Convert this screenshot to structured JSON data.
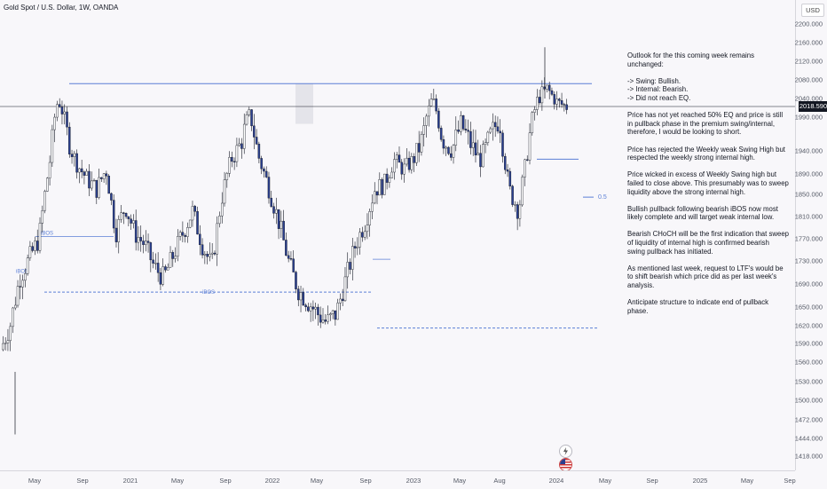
{
  "title": "Gold Spot / U.S. Dollar, 1W, OANDA",
  "currency_button": "USD",
  "current_price": "2018.590",
  "y_ticks": [
    "2200.000",
    "2160.000",
    "2120.000",
    "2080.000",
    "2040.000",
    "1990.000",
    "1940.000",
    "1890.000",
    "1850.000",
    "1810.000",
    "1770.000",
    "1730.000",
    "1690.000",
    "1650.000",
    "1620.000",
    "1590.000",
    "1560.000",
    "1530.000",
    "1500.000",
    "1472.000",
    "1444.000",
    "1418.000"
  ],
  "x_ticks": [
    "May",
    "Sep",
    "2021",
    "May",
    "Sep",
    "2022",
    "May",
    "Sep",
    "2023",
    "May",
    "Aug",
    "2024",
    "May",
    "Sep",
    "2025",
    "May",
    "Sep"
  ],
  "annotations": {
    "ibos_left": "iBOS",
    "ibos_lower": "iBOS",
    "ibos_bottom": "iBOS",
    "fib_half": "0.5"
  },
  "notes": {
    "intro": [
      "Outlook for the this coming week remains unchanged:"
    ],
    "bullets": [
      "-> Swing: Bullish.",
      "-> Internal: Bearish.",
      "-> Did not reach EQ."
    ],
    "p1": "Price has not yet reached 50% EQ and price is still in pullback phase in the premium swing/internal, therefore, I would be looking to short.",
    "p2": "Price has rejected the Weekly weak Swing High but respected the weekly strong internal high.",
    "p3": "Price wicked in excess of Weekly Swing high but failed to close above. This presumably was to sweep liquidity above the strong internal high.",
    "p4": "Bullish pullback following bearish iBOS now most likely complete and will target weak internal low.",
    "p5": "Bearish CHoCH will be the first indication that sweep of liquidity of internal high is confirmed bearish swing pullback has initiated.",
    "p6": "As mentioned last week, request to LTF's would be to shift bearish which price did as per last week's analysis.",
    "p7": "Anticipate structure to indicate end of pullback phase."
  },
  "icons": [
    "lightning-icon",
    "us-flag-icon"
  ],
  "colors": {
    "bull": "#ffffff",
    "bear": "#2a3f8f",
    "wick": "#131722",
    "level_line": "#5b7fd6",
    "bg": "#f8f7fa"
  },
  "chart_data": {
    "type": "candlestick",
    "title": "Gold Spot / U.S. Dollar, 1W, OANDA",
    "ylim": [
      1418,
      2200
    ],
    "last_price": 2018.59,
    "levels": [
      {
        "value": 2072,
        "style": "solid"
      },
      {
        "value": 1922,
        "style": "solid"
      },
      {
        "value": 1676,
        "style": "dashed",
        "label": "iBOS"
      },
      {
        "value": 1616,
        "style": "dashed"
      },
      {
        "value": 1845,
        "style": "solid",
        "label": "0.5"
      }
    ],
    "closes_approx": [
      1580,
      1620,
      1700,
      1735,
      1770,
      1900,
      2040,
      1960,
      1910,
      1880,
      1860,
      1900,
      1780,
      1830,
      1780,
      1760,
      1720,
      1700,
      1740,
      1780,
      1820,
      1760,
      1720,
      1840,
      1920,
      1950,
      2000,
      1920,
      1860,
      1800,
      1730,
      1680,
      1660,
      1640,
      1625,
      1640,
      1700,
      1760,
      1800,
      1860,
      1870,
      1920,
      1900,
      1920,
      1960,
      2040,
      1960,
      1940,
      1980,
      1950,
      1920,
      1960,
      1990,
      1860,
      1820,
      1950,
      2040,
      2060,
      2030,
      2018
    ]
  }
}
